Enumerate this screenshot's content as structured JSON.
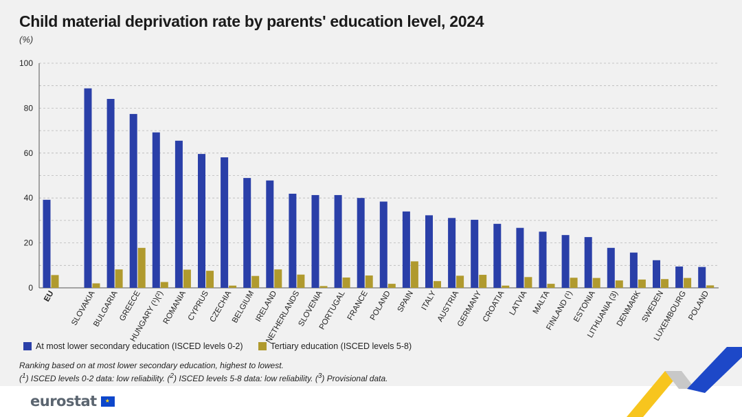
{
  "chart_data": {
    "type": "bar",
    "title": "Child material deprivation rate by parents' education level, 2024",
    "subtitle": "(%)",
    "categories": [
      "EU",
      "SLOVAKIA",
      "BULGARIA",
      "GREECE",
      "HUNGARY (¹)(²)",
      "ROMANIA",
      "CYPRUS",
      "CZECHIA",
      "BELGIUM",
      "IRELAND",
      "NETHERLANDS",
      "SLOVENIA",
      "PORTUGAL",
      "FRANCE",
      "POLAND",
      "SPAIN",
      "ITALY",
      "AUSTRIA",
      "GERMANY",
      "CROATIA",
      "LATVIA",
      "MALTA",
      "FINLAND (¹)",
      "ESTONIA",
      "LITHUANIA (3)",
      "DENMARK",
      "SWEDEN",
      "LUXEMBOURG",
      "POLAND"
    ],
    "series": [
      {
        "name": "At most lower secondary education (ISCED levels 0-2)",
        "color": "#2a3fa8",
        "values": [
          39.2,
          88.8,
          84.1,
          77.4,
          69.2,
          65.5,
          59.6,
          58.1,
          48.9,
          47.8,
          41.9,
          41.3,
          41.3,
          40.0,
          38.4,
          34.0,
          32.3,
          31.1,
          30.3,
          28.5,
          26.7,
          25.0,
          23.5,
          22.6,
          17.8,
          15.7,
          12.3,
          9.5,
          9.3
        ]
      },
      {
        "name": "Tertiary education (ISCED levels 5-8)",
        "color": "#b09a2e",
        "values": [
          5.7,
          2.0,
          8.2,
          17.8,
          2.6,
          8.1,
          7.6,
          1.0,
          5.3,
          8.2,
          5.9,
          0.8,
          4.6,
          5.5,
          1.8,
          11.8,
          3.0,
          5.4,
          5.8,
          1.0,
          4.8,
          1.8,
          4.5,
          4.4,
          3.3,
          3.7,
          3.9,
          4.4,
          1.1
        ]
      }
    ],
    "ylim": [
      0,
      100
    ],
    "yticks": [
      0,
      20,
      40,
      60,
      80,
      100
    ],
    "grid": true,
    "legend": "bottom-left"
  },
  "notes": {
    "line1": "Ranking based on at most lower secondary education, highest to lowest.",
    "fn1": "1",
    "text1": " ISCED levels 0-2 data: low reliability. (",
    "fn2": "2",
    "text2": " ISCED levels 5-8 data: low reliability. (",
    "fn3": "3",
    "text3": " Provisional data."
  },
  "brand": {
    "logo_text": "eurostat"
  }
}
